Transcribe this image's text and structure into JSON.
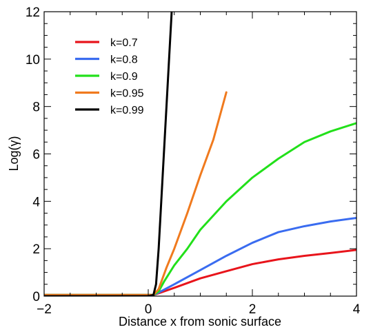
{
  "chart_data": {
    "type": "line",
    "title": "",
    "xlabel": "Distance x from sonic surface",
    "ylabel": "Log(γ)",
    "xlim": [
      -2,
      4
    ],
    "ylim": [
      0,
      12
    ],
    "xticks": [
      -2,
      0,
      2,
      4
    ],
    "xtick_labels": [
      "−2",
      "0",
      "2",
      "4"
    ],
    "yticks": [
      0,
      2,
      4,
      6,
      8,
      10,
      12
    ],
    "ytick_labels": [
      "0",
      "2",
      "4",
      "6",
      "8",
      "10",
      "12"
    ],
    "grid": false,
    "legend_position": "top-left",
    "series": [
      {
        "name": "k=0.7",
        "color": "#e8141b",
        "x": [
          -2,
          0,
          0.1,
          0.2,
          0.5,
          1.0,
          1.5,
          2.0,
          2.5,
          3.0,
          3.5,
          4.0
        ],
        "y": [
          0.05,
          0.05,
          0.05,
          0.12,
          0.35,
          0.75,
          1.05,
          1.35,
          1.55,
          1.7,
          1.82,
          1.95
        ]
      },
      {
        "name": "k=0.8",
        "color": "#3a6cf0",
        "x": [
          -2,
          0,
          0.1,
          0.2,
          0.5,
          1.0,
          1.5,
          2.0,
          2.5,
          3.0,
          3.5,
          4.0
        ],
        "y": [
          0.05,
          0.05,
          0.05,
          0.15,
          0.5,
          1.1,
          1.7,
          2.25,
          2.7,
          2.95,
          3.15,
          3.3
        ]
      },
      {
        "name": "k=0.9",
        "color": "#22e01a",
        "x": [
          -2,
          0,
          0.1,
          0.2,
          0.3,
          0.5,
          0.75,
          1.0,
          1.5,
          2.0,
          2.5,
          3.0,
          3.5,
          4.0
        ],
        "y": [
          0.05,
          0.05,
          0.05,
          0.2,
          0.6,
          1.3,
          2.0,
          2.8,
          4.0,
          5.0,
          5.8,
          6.5,
          6.95,
          7.3
        ]
      },
      {
        "name": "k=0.95",
        "color": "#f07a1e",
        "x": [
          -2,
          0,
          0.1,
          0.2,
          0.35,
          0.5,
          0.75,
          1.0,
          1.25,
          1.5
        ],
        "y": [
          0.05,
          0.05,
          0.05,
          0.3,
          1.2,
          2.0,
          3.5,
          5.1,
          6.6,
          8.6
        ]
      },
      {
        "name": "k=0.99",
        "color": "#000000",
        "x": [
          -2,
          0,
          0.1,
          0.15,
          0.2,
          0.25,
          0.3,
          0.35,
          0.4,
          0.45
        ],
        "y": [
          0.0,
          0.0,
          0.05,
          0.5,
          2.0,
          4.0,
          6.0,
          8.0,
          10.0,
          12.0
        ]
      }
    ]
  }
}
